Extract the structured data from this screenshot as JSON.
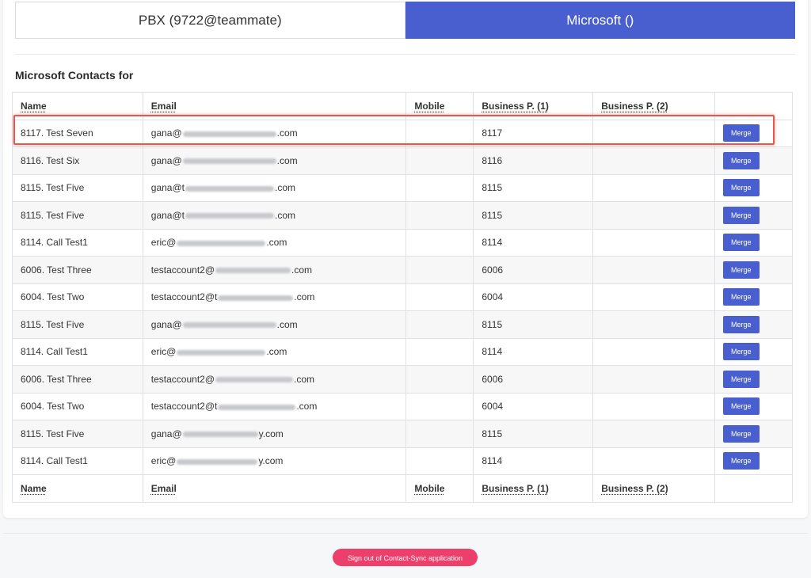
{
  "tabs": [
    {
      "label": "PBX (9722@teammate)",
      "active": false
    },
    {
      "label": "Microsoft ()",
      "active": true
    }
  ],
  "section_title": "Microsoft Contacts for",
  "columns": [
    "Name",
    "Email",
    "Mobile",
    "Business P. (1)",
    "Business P. (2)",
    ""
  ],
  "rows": [
    {
      "name": "8117. Test Seven",
      "email_prefix": "gana@",
      "email_suffix": ".com",
      "mobile": "",
      "bp1": "8117",
      "bp2": "",
      "action": "Merge"
    },
    {
      "name": "8116. Test Six",
      "email_prefix": "gana@",
      "email_suffix": ".com",
      "mobile": "",
      "bp1": "8116",
      "bp2": "",
      "action": "Merge"
    },
    {
      "name": "8115. Test Five",
      "email_prefix": "gana@t",
      "email_suffix": ".com",
      "mobile": "",
      "bp1": "8115",
      "bp2": "",
      "action": "Merge"
    },
    {
      "name": "8115. Test Five",
      "email_prefix": "gana@t",
      "email_suffix": ".com",
      "mobile": "",
      "bp1": "8115",
      "bp2": "",
      "action": "Merge"
    },
    {
      "name": "8114. Call Test1",
      "email_prefix": "eric@",
      "email_suffix": ".com",
      "mobile": "",
      "bp1": "8114",
      "bp2": "",
      "action": "Merge"
    },
    {
      "name": "6006. Test Three",
      "email_prefix": "testaccount2@",
      "email_suffix": ".com",
      "mobile": "",
      "bp1": "6006",
      "bp2": "",
      "action": "Merge"
    },
    {
      "name": "6004. Test Two",
      "email_prefix": "testaccount2@t",
      "email_suffix": ".com",
      "mobile": "",
      "bp1": "6004",
      "bp2": "",
      "action": "Merge"
    },
    {
      "name": "8115. Test Five",
      "email_prefix": "gana@",
      "email_suffix": ".com",
      "mobile": "",
      "bp1": "8115",
      "bp2": "",
      "action": "Merge"
    },
    {
      "name": "8114. Call Test1",
      "email_prefix": "eric@",
      "email_suffix": ".com",
      "mobile": "",
      "bp1": "8114",
      "bp2": "",
      "action": "Merge"
    },
    {
      "name": "6006. Test Three",
      "email_prefix": "testaccount2@",
      "email_suffix": ".com",
      "mobile": "",
      "bp1": "6006",
      "bp2": "",
      "action": "Merge"
    },
    {
      "name": "6004. Test Two",
      "email_prefix": "testaccount2@t",
      "email_suffix": ".com",
      "mobile": "",
      "bp1": "6004",
      "bp2": "",
      "action": "Merge"
    },
    {
      "name": "8115. Test Five",
      "email_prefix": "gana@",
      "email_suffix": "y.com",
      "mobile": "",
      "bp1": "8115",
      "bp2": "",
      "action": "Merge"
    },
    {
      "name": "8114. Call Test1",
      "email_prefix": "eric@",
      "email_suffix": "y.com",
      "mobile": "",
      "bp1": "8114",
      "bp2": "",
      "action": "Merge"
    }
  ],
  "signout_label": "Sign out of Contact-Sync application",
  "colors": {
    "accent": "#4a5fcf",
    "signout": "#ec3f6b",
    "highlight": "#e8574b"
  }
}
